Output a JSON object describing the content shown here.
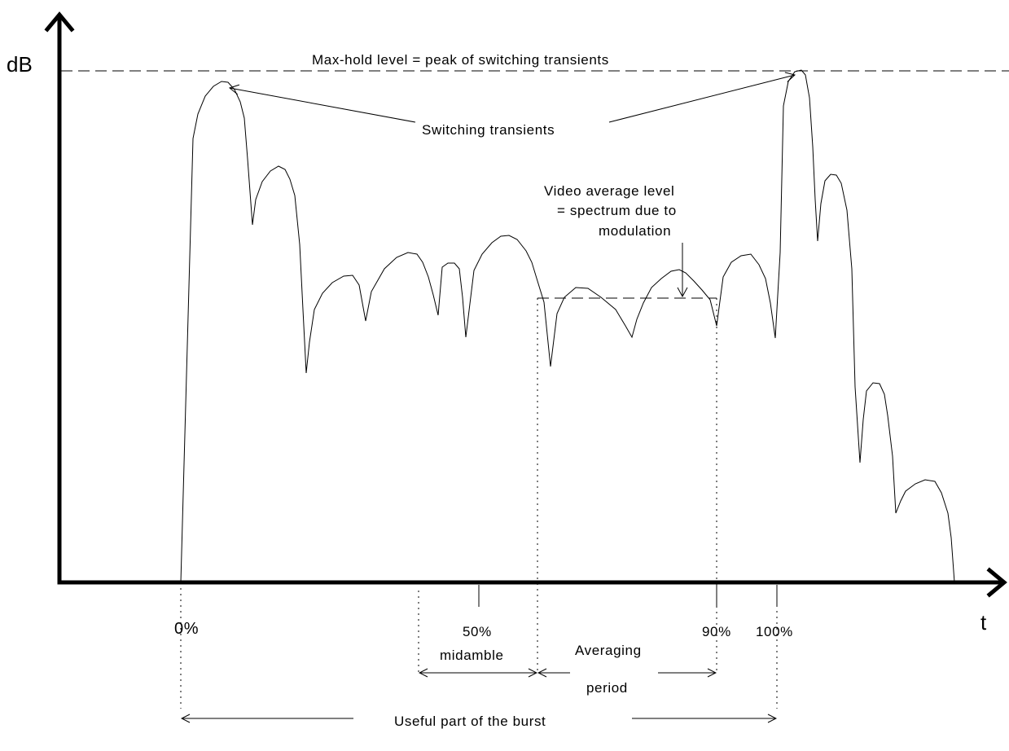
{
  "axes": {
    "y_label": "dB",
    "x_label": "t"
  },
  "labels": {
    "maxhold": "Max-hold level = peak of switching transients",
    "switching": "Switching transients",
    "video_line1": "Video average level",
    "video_line2": "= spectrum due to",
    "video_line3": "modulation",
    "tick_0": "0%",
    "tick_50": "50%",
    "tick_90": "90%",
    "tick_100": "100%",
    "midamble": "midamble",
    "averaging_line1": "Averaging",
    "averaging_line2": "period",
    "useful": "Useful part of the burst"
  }
}
